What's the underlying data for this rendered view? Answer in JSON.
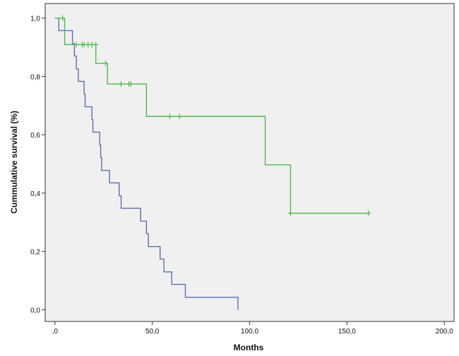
{
  "chart_data": {
    "type": "line",
    "subtype": "kaplan-meier step",
    "xlabel": "Months",
    "ylabel": "Cummulative survival (%)",
    "xlim": [
      -5,
      205
    ],
    "ylim": [
      -0.04,
      1.05
    ],
    "x_ticks": [
      {
        "value": 0,
        "label": ",0"
      },
      {
        "value": 50,
        "label": "50,0"
      },
      {
        "value": 100,
        "label": "100,0"
      },
      {
        "value": 150,
        "label": "150,0"
      },
      {
        "value": 200,
        "label": "200,0"
      }
    ],
    "y_ticks": [
      {
        "value": 0,
        "label": "0,0"
      },
      {
        "value": 0.2,
        "label": "0,2"
      },
      {
        "value": 0.4,
        "label": "0,4"
      },
      {
        "value": 0.6,
        "label": "0,6"
      },
      {
        "value": 0.8,
        "label": "0,8"
      },
      {
        "value": 1.0,
        "label": "1,0"
      }
    ],
    "grid": false,
    "background": "#f0f0f0",
    "series": [
      {
        "color": "#5b6fb5",
        "steps": [
          [
            0,
            1.0
          ],
          [
            2,
            0.957
          ],
          [
            9,
            0.913
          ],
          [
            10,
            0.87
          ],
          [
            11,
            0.826
          ],
          [
            12,
            0.783
          ],
          [
            15,
            0.739
          ],
          [
            15.5,
            0.696
          ],
          [
            19,
            0.652
          ],
          [
            19.5,
            0.609
          ],
          [
            23,
            0.565
          ],
          [
            23.5,
            0.522
          ],
          [
            24,
            0.478
          ],
          [
            28,
            0.435
          ],
          [
            33,
            0.391
          ],
          [
            34,
            0.348
          ],
          [
            44,
            0.304
          ],
          [
            47,
            0.261
          ],
          [
            48,
            0.217
          ],
          [
            54,
            0.174
          ],
          [
            56,
            0.13
          ],
          [
            60,
            0.087
          ],
          [
            67,
            0.043
          ]
        ],
        "end_x": 94,
        "end_y": 0.0,
        "censored": []
      },
      {
        "color": "#4fb84f",
        "steps": [
          [
            0,
            1.0
          ],
          [
            5,
            0.909
          ],
          [
            21,
            0.845
          ],
          [
            27,
            0.774
          ],
          [
            47,
            0.663
          ],
          [
            108,
            0.497
          ],
          [
            121,
            0.331
          ]
        ],
        "end_x": 161,
        "end_y": 0.331,
        "censored": [
          [
            4,
            1.0
          ],
          [
            11,
            0.909
          ],
          [
            14,
            0.909
          ],
          [
            15,
            0.909
          ],
          [
            17,
            0.909
          ],
          [
            19,
            0.909
          ],
          [
            21,
            0.909
          ],
          [
            26,
            0.845
          ],
          [
            34,
            0.774
          ],
          [
            38,
            0.774
          ],
          [
            39,
            0.774
          ],
          [
            59,
            0.663
          ],
          [
            64,
            0.663
          ],
          [
            121,
            0.331
          ],
          [
            161,
            0.331
          ]
        ]
      }
    ]
  }
}
